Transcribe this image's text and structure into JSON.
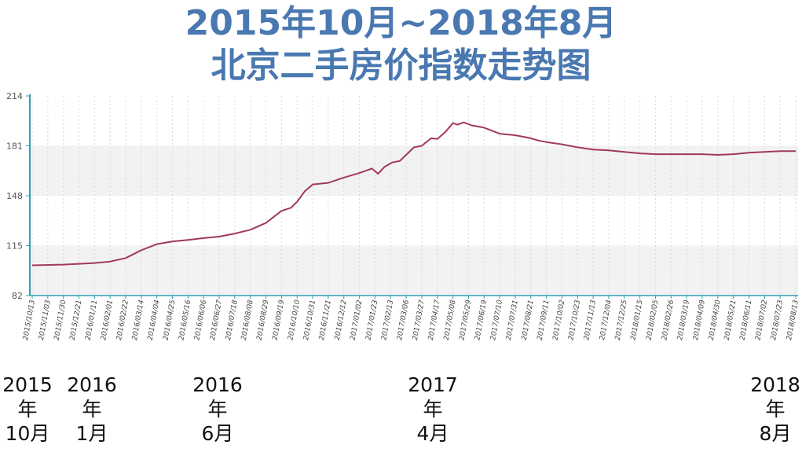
{
  "title_line1": "2015年10月~2018年8月",
  "title_line2": "北京二手房价指数走势图",
  "colors": {
    "title": "#4a78b0",
    "line": "#a03a5a",
    "axis": "#2f9fb2",
    "band": "#f2f2f2"
  },
  "chart_data": {
    "type": "line",
    "ylim": [
      82,
      214
    ],
    "yticks": [
      82,
      115,
      148,
      181,
      214
    ],
    "grid": "vertical dotted lines at each x tick, alternating horizontal bands",
    "x_ticks": [
      "2015/10/13",
      "2015/11/03",
      "2015/11/30",
      "2015/12/21",
      "2016/01/11",
      "2016/02/01",
      "2016/02/22",
      "2016/03/14",
      "2016/04/04",
      "2016/04/25",
      "2016/05/16",
      "2016/06/06",
      "2016/06/27",
      "2016/07/18",
      "2016/08/08",
      "2016/08/29",
      "2016/09/19",
      "2016/10/10",
      "2016/10/31",
      "2016/11/21",
      "2016/12/12",
      "2017/01/02",
      "2017/01/23",
      "2017/02/13",
      "2017/03/06",
      "2017/03/27",
      "2017/04/17",
      "2017/05/08",
      "2017/05/29",
      "2017/06/19",
      "2017/07/10",
      "2017/07/31",
      "2017/08/21",
      "2017/09/11",
      "2017/10/02",
      "2017/10/23",
      "2017/11/13",
      "2017/12/04",
      "2017/12/25",
      "2018/01/15",
      "2018/02/05",
      "2018/02/26",
      "2018/03/19",
      "2018/04/09",
      "2018/04/30",
      "2018/05/21",
      "2018/06/11",
      "2018/07/02",
      "2018/07/23",
      "2018/08/13"
    ],
    "series": [
      {
        "values": [
          [
            0,
            102
          ],
          [
            2,
            102.5
          ],
          [
            4,
            103.5
          ],
          [
            5,
            104.5
          ],
          [
            6,
            106.8
          ],
          [
            7,
            112
          ],
          [
            8,
            116
          ],
          [
            9,
            117.8
          ],
          [
            10,
            118.8
          ],
          [
            11,
            120
          ],
          [
            12,
            121
          ],
          [
            13,
            123
          ],
          [
            14,
            125.5
          ],
          [
            15,
            130
          ],
          [
            16,
            138
          ],
          [
            16.6,
            140
          ],
          [
            17,
            144
          ],
          [
            17.5,
            151
          ],
          [
            18,
            155.5
          ],
          [
            19,
            156.5
          ],
          [
            20,
            160
          ],
          [
            21,
            163
          ],
          [
            21.8,
            166
          ],
          [
            22.2,
            162.5
          ],
          [
            22.6,
            167
          ],
          [
            23.1,
            170
          ],
          [
            23.6,
            171
          ],
          [
            24,
            175
          ],
          [
            24.5,
            180
          ],
          [
            25,
            181
          ],
          [
            25.6,
            186
          ],
          [
            26,
            185.5
          ],
          [
            26.5,
            190
          ],
          [
            27,
            196
          ],
          [
            27.3,
            195
          ],
          [
            27.7,
            196.5
          ],
          [
            28.2,
            194.5
          ],
          [
            29,
            193
          ],
          [
            30,
            189
          ],
          [
            31,
            188
          ],
          [
            32,
            186
          ],
          [
            32.5,
            184.5
          ],
          [
            33,
            183.5
          ],
          [
            34,
            182
          ],
          [
            35,
            180
          ],
          [
            36,
            178.5
          ],
          [
            37,
            178
          ],
          [
            38,
            177
          ],
          [
            39,
            176
          ],
          [
            40,
            175.5
          ],
          [
            41,
            175.5
          ],
          [
            42,
            175.5
          ],
          [
            43,
            175.5
          ],
          [
            44,
            175
          ],
          [
            45,
            175.5
          ],
          [
            46,
            176.5
          ],
          [
            47,
            177
          ],
          [
            48,
            177.5
          ],
          [
            49,
            177.5
          ]
        ]
      }
    ]
  },
  "annotations": [
    {
      "year": "2015",
      "nian": "年",
      "month": "10月"
    },
    {
      "year": "2016",
      "nian": "年",
      "month": "1月"
    },
    {
      "year": "2016",
      "nian": "年",
      "month": "6月"
    },
    {
      "year": "2017",
      "nian": "年",
      "month": "4月"
    },
    {
      "year": "2018",
      "nian": "年",
      "month": "8月"
    }
  ]
}
